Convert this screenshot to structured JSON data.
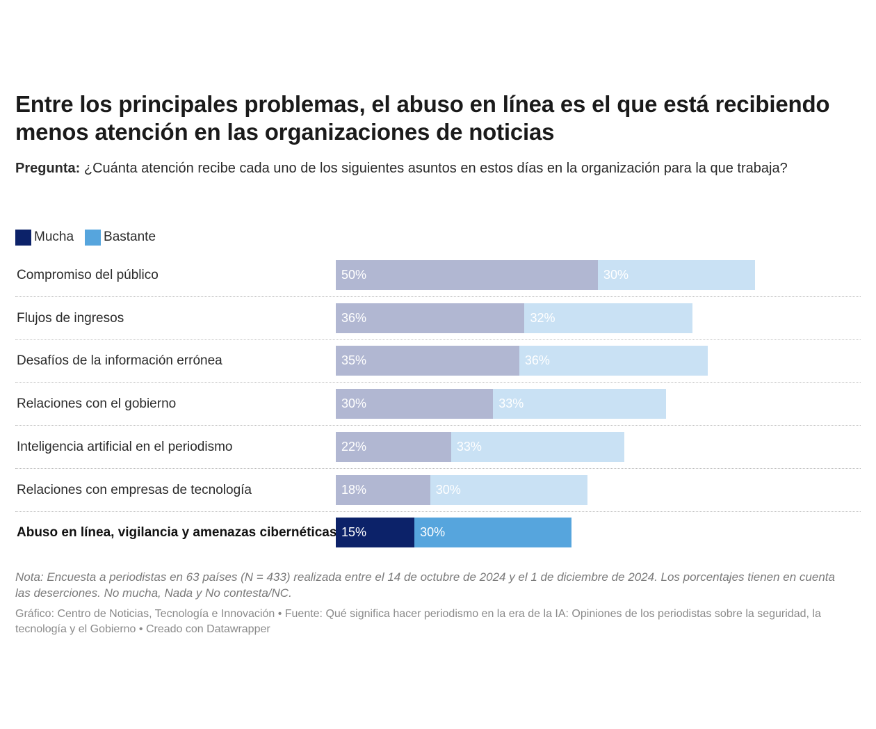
{
  "title": "Entre los principales problemas, el abuso en línea es el que está recibiendo menos atención en las organizaciones de noticias",
  "question": {
    "label": "Pregunta:",
    "text": " ¿Cuánta atención recibe cada uno de los siguientes asuntos en estos días en la organización para la que trabaja?"
  },
  "legend": [
    {
      "name": "Mucha",
      "color": "#0c2269"
    },
    {
      "name": "Bastante",
      "color": "#56a5dd"
    }
  ],
  "colors": {
    "mucha": "#0c2269",
    "bastante": "#56a5dd",
    "mucha_faded": "#b1b7d2",
    "bastante_faded": "#c9e1f4"
  },
  "chart_data": {
    "type": "bar",
    "orientation": "horizontal",
    "stacked": true,
    "categories": [
      "Compromiso del público",
      "Flujos de ingresos",
      "Desafíos de la información errónea",
      "Relaciones con el gobierno",
      "Inteligencia artificial en el periodismo",
      "Relaciones con empresas de tecnología",
      "Abuso en línea, vigilancia y amenazas cibernéticas"
    ],
    "series": [
      {
        "name": "Mucha",
        "values": [
          50,
          36,
          35,
          30,
          22,
          18,
          15
        ]
      },
      {
        "name": "Bastante",
        "values": [
          30,
          32,
          36,
          33,
          33,
          30,
          30
        ]
      }
    ],
    "value_labels": {
      "Mucha": [
        "50%",
        "36%",
        "35%",
        "30%",
        "22%",
        "18%",
        "15%"
      ],
      "Bastante": [
        "30%",
        "32%",
        "36%",
        "33%",
        "33%",
        "30%",
        "30%"
      ]
    },
    "highlighted_category": "Abuso en línea, vigilancia y amenazas cibernéticas",
    "xlim": [
      0,
      100
    ],
    "unit": "%"
  },
  "note": "Nota: Encuesta a periodistas en 63 países (N = 433) realizada entre el 14 de octubre de 2024 y el 1 de diciembre de 2024. Los porcentajes tienen en cuenta las deserciones. No mucha, Nada y No contesta/NC.",
  "credits": "Gráfico: Centro de Noticias, Tecnología e Innovación • Fuente: Qué significa hacer periodismo en la era de la IA: Opiniones de los periodistas sobre la seguridad, la tecnología y el Gobierno • Creado con Datawrapper"
}
